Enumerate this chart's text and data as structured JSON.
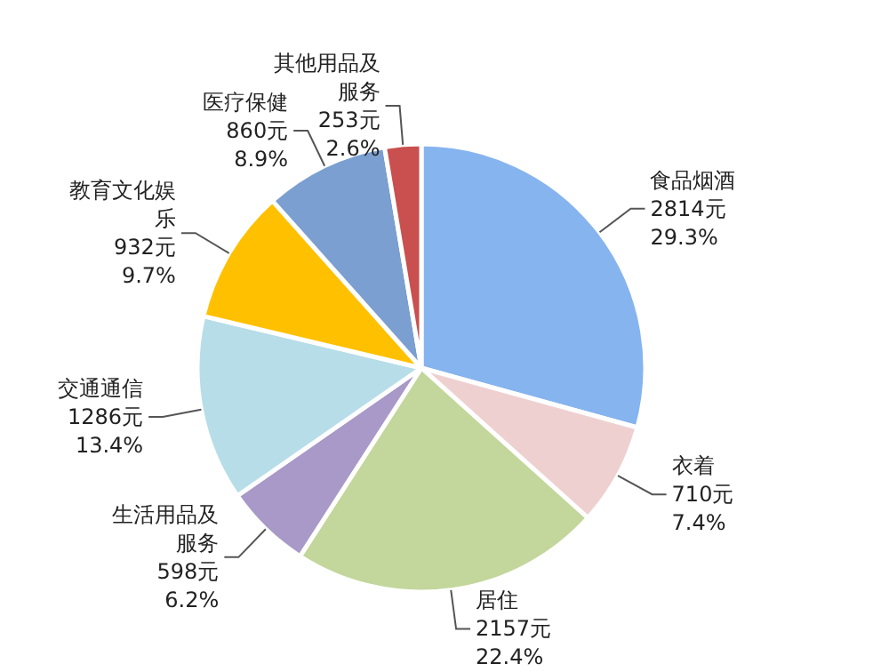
{
  "chart_data": {
    "type": "pie",
    "categories": [
      "食品烟酒",
      "衣着",
      "居住",
      "生活用品及服务",
      "交通通信",
      "教育文化娱乐",
      "医疗保健",
      "其他用品及服务"
    ],
    "values": [
      2814,
      710,
      2157,
      598,
      1286,
      932,
      860,
      253
    ],
    "value_labels": [
      "2814元 29.3%",
      "710元 7.4%",
      "2157元 22.4%",
      "598元 6.2%",
      "1286元 13.4%",
      "932元 9.7%",
      "860元 8.9%",
      "253元 2.6%"
    ],
    "colors": [
      "#86b4ee",
      "#efd0d0",
      "#c3d69b",
      "#a899c8",
      "#b7dde8",
      "#ffc000",
      "#7a9fd0",
      "#c9504f"
    ]
  }
}
